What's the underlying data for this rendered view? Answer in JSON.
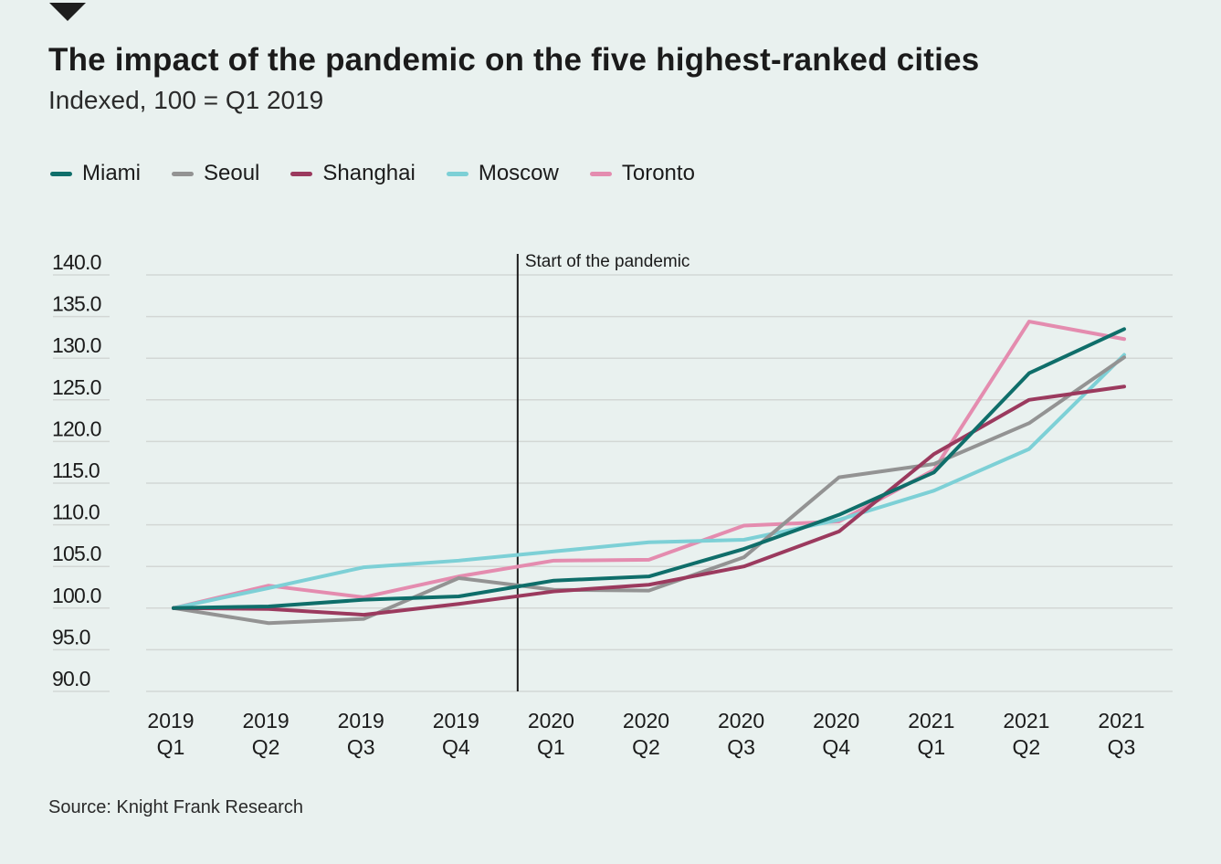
{
  "header": {
    "title": "The impact of the pandemic on the five highest-ranked cities",
    "subtitle": "Indexed, 100 = Q1 2019"
  },
  "footer": {
    "source": "Source: Knight Frank Research"
  },
  "chart_data": {
    "type": "line",
    "title": "The impact of the pandemic on the five highest-ranked cities",
    "subtitle": "Indexed, 100 = Q1 2019",
    "xlabel": "",
    "ylabel": "",
    "ylim": [
      90,
      140
    ],
    "yticks": [
      "140.0",
      "135.0",
      "130.0",
      "125.0",
      "120.0",
      "115.0",
      "110.0",
      "105.0",
      "100.0",
      "95.0",
      "90.0"
    ],
    "ytick_values": [
      140,
      135,
      130,
      125,
      120,
      115,
      110,
      105,
      100,
      95,
      90
    ],
    "grid": true,
    "legend_position": "top-left",
    "categories": [
      {
        "year": "2019",
        "q": "Q1"
      },
      {
        "year": "2019",
        "q": "Q2"
      },
      {
        "year": "2019",
        "q": "Q3"
      },
      {
        "year": "2019",
        "q": "Q4"
      },
      {
        "year": "2020",
        "q": "Q1"
      },
      {
        "year": "2020",
        "q": "Q2"
      },
      {
        "year": "2020",
        "q": "Q3"
      },
      {
        "year": "2020",
        "q": "Q4"
      },
      {
        "year": "2021",
        "q": "Q1"
      },
      {
        "year": "2021",
        "q": "Q2"
      },
      {
        "year": "2021",
        "q": "Q3"
      }
    ],
    "annotation": {
      "label": "Start of the pandemic",
      "x_position": 3.62
    },
    "series": [
      {
        "name": "Miami",
        "color": "#0f6e6a",
        "values": [
          100.0,
          100.2,
          101.0,
          101.4,
          103.3,
          103.8,
          107.1,
          111.2,
          116.3,
          128.2,
          133.5
        ]
      },
      {
        "name": "Seoul",
        "color": "#939393",
        "values": [
          100.0,
          98.2,
          98.7,
          103.6,
          102.2,
          102.1,
          106.1,
          115.7,
          117.3,
          122.2,
          130.1
        ]
      },
      {
        "name": "Shanghai",
        "color": "#9b3a5e",
        "values": [
          100.0,
          99.9,
          99.2,
          100.5,
          102.0,
          102.8,
          105.0,
          109.2,
          118.5,
          125.0,
          126.6
        ]
      },
      {
        "name": "Moscow",
        "color": "#7dd0d6",
        "values": [
          100.0,
          102.4,
          104.9,
          105.7,
          106.8,
          107.9,
          108.2,
          110.6,
          114.1,
          119.1,
          130.4
        ]
      },
      {
        "name": "Toronto",
        "color": "#e48caf",
        "values": [
          100.0,
          102.7,
          101.3,
          103.8,
          105.7,
          105.8,
          109.9,
          110.4,
          116.6,
          134.4,
          132.3
        ]
      }
    ]
  }
}
